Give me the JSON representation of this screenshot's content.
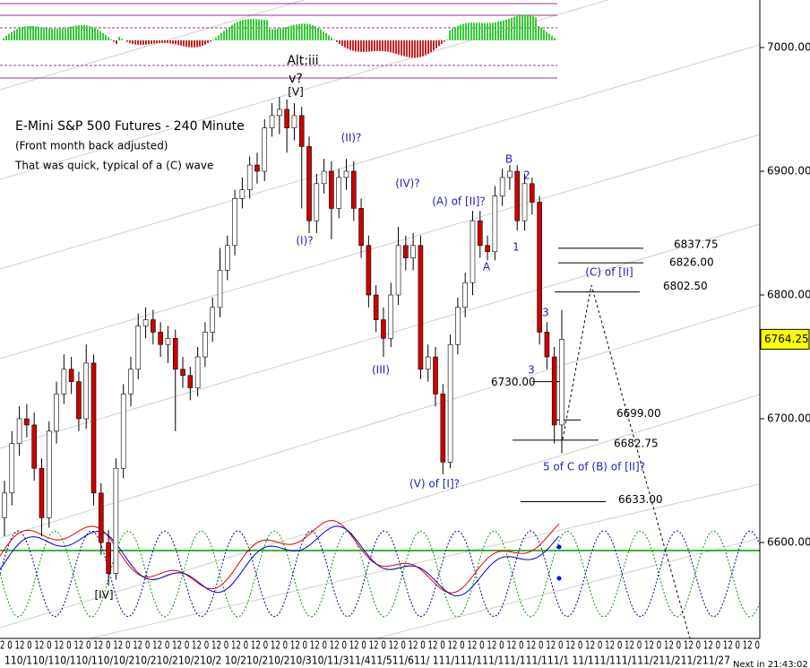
{
  "chart_data": {
    "type": "candlestick",
    "title": "E-Mini S&P 500 Futures - 240 Minute",
    "subtitle": "(Front month back adjusted)",
    "note": "That was quick, typical of a (C) wave",
    "ylim": [
      6522.5,
      7038.4
    ],
    "yticks": [
      {
        "value": 6600,
        "label": "6600.00"
      },
      {
        "value": 6700,
        "label": "6700.00"
      },
      {
        "value": 6800,
        "label": "6800.00"
      },
      {
        "value": 6900,
        "label": "6900.00"
      },
      {
        "value": 7000,
        "label": "7000.00"
      }
    ],
    "up_color": "#ffffff",
    "down_color": "#cc0000",
    "open": [
      6620,
      6640,
      6680,
      6700,
      6695,
      6660,
      6620,
      6690,
      6720,
      6740,
      6730,
      6700,
      6745,
      6640,
      6600,
      6575,
      6660,
      6720,
      6740,
      6775,
      6780,
      6770,
      6760,
      6765,
      6740,
      6735,
      6725,
      6750,
      6770,
      6790,
      6820,
      6840,
      6878,
      6885,
      6905,
      6900,
      6935,
      6945,
      6950,
      6935,
      6945,
      6920,
      6860,
      6890,
      6900,
      6870,
      6895,
      6900,
      6870,
      6840,
      6800,
      6780,
      6765,
      6800,
      6840,
      6830,
      6840,
      6740,
      6750,
      6720,
      6665,
      6760,
      6790,
      6810,
      6860,
      6840,
      6835,
      6880,
      6895,
      6900,
      6860,
      6890,
      6875,
      6770,
      6750,
      6695
    ],
    "high": [
      6650,
      6690,
      6710,
      6712,
      6705,
      6668,
      6698,
      6730,
      6752,
      6750,
      6738,
      6760,
      6752,
      6648,
      6610,
      6668,
      6728,
      6750,
      6785,
      6790,
      6788,
      6778,
      6775,
      6772,
      6750,
      6742,
      6758,
      6778,
      6798,
      6838,
      6848,
      6885,
      6895,
      6912,
      6915,
      6942,
      6955,
      6960,
      6958,
      6955,
      6952,
      6928,
      6898,
      6910,
      6908,
      6902,
      6910,
      6908,
      6878,
      6848,
      6808,
      6790,
      6810,
      6855,
      6848,
      6850,
      6848,
      6760,
      6758,
      6728,
      6768,
      6798,
      6818,
      6868,
      6868,
      6848,
      6888,
      6902,
      6905,
      6905,
      6898,
      6895,
      6880,
      6778,
      6758,
      6788
    ],
    "low": [
      6605,
      6630,
      6670,
      6685,
      6650,
      6605,
      6612,
      6680,
      6712,
      6720,
      6690,
      6692,
      6630,
      6590,
      6565,
      6570,
      6652,
      6710,
      6732,
      6765,
      6760,
      6750,
      6745,
      6690,
      6725,
      6715,
      6718,
      6742,
      6762,
      6782,
      6812,
      6832,
      6870,
      6878,
      6890,
      6892,
      6928,
      6930,
      6915,
      6925,
      6870,
      6850,
      6850,
      6882,
      6845,
      6862,
      6885,
      6860,
      6830,
      6790,
      6770,
      6750,
      6758,
      6792,
      6820,
      6820,
      6732,
      6730,
      6710,
      6655,
      6660,
      6752,
      6782,
      6800,
      6830,
      6828,
      6828,
      6872,
      6885,
      6852,
      6852,
      6865,
      6760,
      6740,
      6680,
      6672
    ],
    "close": [
      6640,
      6680,
      6700,
      6695,
      6660,
      6620,
      6690,
      6720,
      6740,
      6730,
      6700,
      6745,
      6640,
      6600,
      6575,
      6660,
      6720,
      6740,
      6775,
      6780,
      6770,
      6760,
      6765,
      6740,
      6735,
      6725,
      6750,
      6770,
      6790,
      6820,
      6840,
      6878,
      6885,
      6905,
      6900,
      6935,
      6945,
      6950,
      6935,
      6945,
      6920,
      6860,
      6890,
      6900,
      6870,
      6895,
      6900,
      6870,
      6840,
      6800,
      6780,
      6765,
      6800,
      6840,
      6830,
      6840,
      6740,
      6750,
      6720,
      6665,
      6760,
      6790,
      6810,
      6860,
      6840,
      6835,
      6880,
      6895,
      6900,
      6860,
      6890,
      6875,
      6770,
      6750,
      6695,
      6764.25
    ],
    "last_price": 6764.25,
    "levels": [
      6837.75,
      {
        "value": 6826,
        "label": "6826.00"
      },
      {
        "value": 6802.5,
        "label": "6802.50"
      },
      {
        "value": 6730,
        "label": "6730.00"
      },
      {
        "value": 6699,
        "label": "6699.00"
      },
      6682.75,
      {
        "value": 6633,
        "label": "6633.00"
      }
    ],
    "annotations": [
      "Alt:iii",
      "v?",
      "[V]",
      "(II)?",
      "(I)?",
      "(IV)?",
      "(A) of [II]?",
      "B",
      "2",
      "1",
      "A",
      "(C) of [II]",
      "3",
      "3",
      "(III)",
      "(V) of [I]?",
      "5 of C of (B) of [II]?",
      "[IV]"
    ],
    "x_axis_hours": "2  0 12 0 12 0 12 0 12 0 12 0 12 0 12 0 12 0 12 0 12 0 12 0 12 0 12 0 12 0 12 0 12 0 12 0 12 0 12 0 12 0 12 0 12 0 12 0 12 0 12 0 12 0 12 0 12 0 12 0 12 0 12 0 12 0 12 0 12 0 12 0 12 0 12 0 12 0",
    "x_axis_dates": "110/110/110/110/110/10/210/210/210/210/2 10/210/210/210/310/11/311/411/511/611/ 111/111/111/111/111/111/1 11/111/111/111/211/211/211/27",
    "status": "Next in 21:43:02"
  }
}
